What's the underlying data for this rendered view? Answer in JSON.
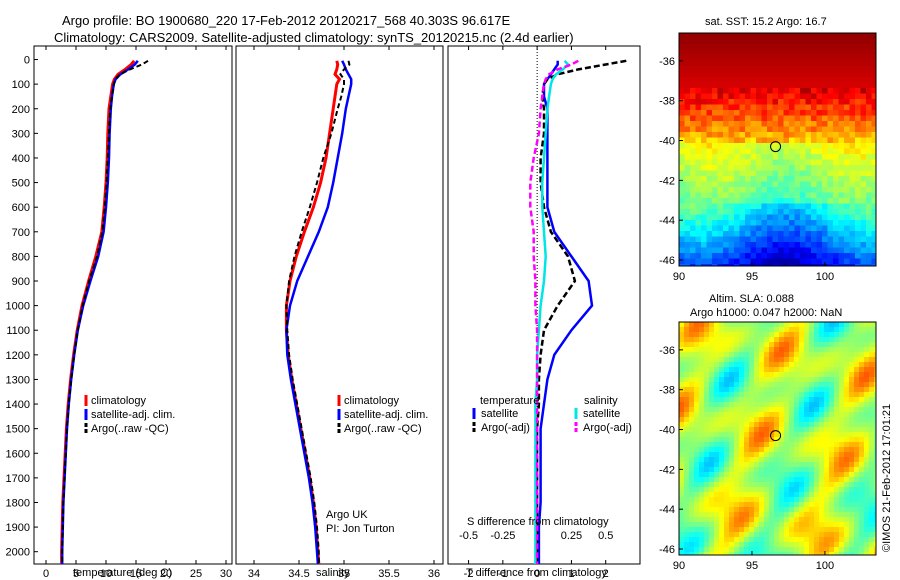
{
  "header": {
    "title_line1": "Argo profile: BO 1900680_220 17-Feb-2012 20120217_568 40.303S 96.617E",
    "title_line2": "Climatology: CARS2009. Satellite-adjusted climatology: synTS_20120215.nc (2.4d earlier)"
  },
  "colors": {
    "climatology": "#ff0000",
    "satellite": "#0000ff",
    "argo": "#000000",
    "salinity_satellite": "#00e5e5",
    "salinity_argo": "#ff00ff"
  },
  "depth_axis": {
    "ticks": [
      "0",
      "100",
      "200",
      "300",
      "400",
      "500",
      "600",
      "700",
      "800",
      "900",
      "1000",
      "1100",
      "1200",
      "1300",
      "1400",
      "1500",
      "1600",
      "1700",
      "1800",
      "1900",
      "2000"
    ]
  },
  "chart_data": [
    {
      "name": "temperature profile",
      "type": "line",
      "xlabel": "temperature (deg C)",
      "ylabel": "",
      "xlim": [
        -2,
        31
      ],
      "ylim": [
        2050,
        0
      ],
      "xticks": [
        "0",
        "5",
        "10",
        "15",
        "20",
        "25",
        "30"
      ],
      "legend": [
        "climatology",
        "satellite-adj. clim.",
        "Argo(..raw -QC)"
      ],
      "legend_position": "lower-right",
      "depth": [
        5,
        20,
        40,
        60,
        80,
        100,
        150,
        200,
        300,
        400,
        500,
        600,
        700,
        800,
        900,
        1000,
        1100,
        1200,
        1300,
        1400,
        1500,
        1600,
        1700,
        1800,
        1900,
        2000,
        2050
      ],
      "series": [
        {
          "name": "climatology",
          "values": [
            14.7,
            14.2,
            13.2,
            12.0,
            11.4,
            11.1,
            10.8,
            10.5,
            10.3,
            10.2,
            10.0,
            9.7,
            9.3,
            8.3,
            7.1,
            6.0,
            5.2,
            4.6,
            4.1,
            3.7,
            3.4,
            3.2,
            3.0,
            2.8,
            2.7,
            2.6,
            2.6
          ]
        },
        {
          "name": "satellite-adj. clim.",
          "values": [
            15.3,
            14.8,
            13.7,
            12.4,
            11.6,
            11.3,
            11.0,
            10.8,
            10.6,
            10.5,
            10.3,
            10.0,
            9.6,
            8.7,
            7.4,
            6.2,
            5.3,
            4.7,
            4.2,
            3.8,
            3.5,
            3.3,
            3.1,
            2.9,
            2.8,
            2.7,
            2.7
          ]
        },
        {
          "name": "Argo(..raw -QC)",
          "values": [
            17.0,
            16.0,
            14.0,
            12.3,
            11.6,
            11.3,
            11.0,
            10.7,
            10.5,
            10.3,
            10.1,
            9.8,
            9.4,
            8.5,
            7.2,
            6.1,
            5.3,
            4.7,
            4.2,
            3.8,
            3.5,
            3.3,
            3.1,
            2.9,
            2.8,
            2.7,
            2.7
          ]
        }
      ]
    },
    {
      "name": "salinity profile",
      "type": "line",
      "xlabel": "salinity",
      "ylabel": "",
      "xlim": [
        33.8,
        36.1
      ],
      "ylim": [
        2050,
        0
      ],
      "xticks": [
        "34",
        "34.5",
        "35",
        "35.5",
        "36"
      ],
      "legend": [
        "climatology",
        "satellite-adj. clim.",
        "Argo(..raw -QC)"
      ],
      "legend_position": "lower-right",
      "annotation_line1": "Argo UK",
      "annotation_line2": "PI: Jon Turton",
      "depth": [
        5,
        20,
        40,
        60,
        80,
        100,
        150,
        200,
        300,
        400,
        500,
        600,
        700,
        800,
        900,
        1000,
        1100,
        1200,
        1300,
        1400,
        1500,
        1600,
        1700,
        1800,
        1900,
        2000,
        2050
      ],
      "series": [
        {
          "name": "climatology",
          "values": [
            34.92,
            34.93,
            34.92,
            34.9,
            34.95,
            34.92,
            34.9,
            34.88,
            34.84,
            34.8,
            34.74,
            34.66,
            34.56,
            34.47,
            34.4,
            34.36,
            34.36,
            34.38,
            34.42,
            34.47,
            34.52,
            34.57,
            34.62,
            34.66,
            34.69,
            34.71,
            34.72
          ]
        },
        {
          "name": "satellite-adj. clim.",
          "values": [
            34.98,
            35.0,
            35.02,
            35.05,
            35.08,
            35.08,
            35.05,
            35.02,
            34.98,
            34.93,
            34.88,
            34.82,
            34.72,
            34.6,
            34.48,
            34.4,
            34.36,
            34.37,
            34.41,
            34.46,
            34.51,
            34.56,
            34.61,
            34.65,
            34.68,
            34.7,
            34.71
          ]
        },
        {
          "name": "Argo(..raw -QC)",
          "values": [
            35.05,
            35.06,
            35.0,
            34.96,
            35.0,
            35.0,
            34.97,
            34.93,
            34.86,
            34.77,
            34.7,
            34.62,
            34.53,
            34.45,
            34.39,
            34.36,
            34.37,
            34.39,
            34.43,
            34.48,
            34.53,
            34.58,
            34.63,
            34.67,
            34.7,
            34.72,
            34.72
          ]
        }
      ]
    },
    {
      "name": "difference profile",
      "type": "line",
      "xlabel": "T difference from climatology",
      "top_label": "S difference from climatology",
      "xlim": [
        -2.6,
        3.0
      ],
      "ylim": [
        2050,
        0
      ],
      "xticks": [
        "-2",
        "-1",
        "0",
        "1",
        "2"
      ],
      "sticks": [
        "-0.5",
        "-0.25",
        "0",
        "0.25",
        "0.5"
      ],
      "legend_temperature_heading": "temperature",
      "legend_salinity_heading": "salinity",
      "legend_temperature": [
        "satellite",
        "Argo(-adj)"
      ],
      "legend_salinity": [
        "satellite",
        "Argo(-adj)"
      ],
      "depth": [
        5,
        20,
        40,
        60,
        80,
        100,
        150,
        200,
        300,
        400,
        500,
        600,
        700,
        800,
        900,
        1000,
        1100,
        1200,
        1300,
        1400,
        1500,
        1600,
        1700,
        1800,
        1900,
        2000,
        2050
      ],
      "series": [
        {
          "name": "temperature satellite",
          "values": [
            0.6,
            0.6,
            0.5,
            0.4,
            0.3,
            0.2,
            0.2,
            0.3,
            0.3,
            0.3,
            0.3,
            0.3,
            0.5,
            1.0,
            1.5,
            1.6,
            1.0,
            0.5,
            0.3,
            0.2,
            0.1,
            0.1,
            0.1,
            0.1,
            0.05,
            0.05,
            0.05
          ]
        },
        {
          "name": "temperature Argo(-adj)",
          "values": [
            2.6,
            2.0,
            1.2,
            0.6,
            0.3,
            0.2,
            0.15,
            0.2,
            0.2,
            0.1,
            0.1,
            0.2,
            0.4,
            0.9,
            1.1,
            0.6,
            0.2,
            0.1,
            0.05,
            0.05,
            0.0,
            0.0,
            0.0,
            0.0,
            0.0,
            0.0,
            0.0
          ]
        },
        {
          "name": "salinity satellite",
          "values": [
            0.8,
            0.9,
            0.75,
            0.55,
            0.45,
            0.4,
            0.35,
            0.3,
            0.25,
            0.2,
            0.15,
            0.15,
            0.2,
            0.25,
            0.2,
            0.1,
            0.05,
            0.0,
            0.0,
            -0.05,
            -0.05,
            -0.05,
            -0.05,
            -0.05,
            -0.05,
            -0.05,
            -0.05
          ]
        },
        {
          "name": "salinity Argo(-adj)",
          "values": [
            1.2,
            1.0,
            0.6,
            0.35,
            0.25,
            0.2,
            0.15,
            0.1,
            0.05,
            -0.1,
            -0.2,
            -0.2,
            -0.1,
            -0.1,
            -0.05,
            -0.05,
            0.0,
            0.0,
            0.0,
            0.0,
            0.0,
            0.0,
            0.0,
            0.0,
            0.0,
            0.0,
            0.0
          ]
        }
      ]
    },
    {
      "name": "sat SST map",
      "type": "heatmap",
      "title": "sat. SST: 15.2  Argo: 16.7",
      "xlim": [
        90,
        103.5
      ],
      "ylim": [
        -46.3,
        -34.6
      ],
      "xticks": [
        "90",
        "95",
        "100"
      ],
      "yticks": [
        "-36",
        "-38",
        "-40",
        "-42",
        "-44",
        "-46"
      ],
      "argo_position": {
        "lon": 96.617,
        "lat": -40.303
      }
    },
    {
      "name": "sea level anomaly map",
      "type": "heatmap",
      "title_line1": "Altim. SLA: 0.088",
      "title_line2": "Argo h1000: 0.047 h2000: NaN",
      "xlim": [
        90,
        103.5
      ],
      "ylim": [
        -46.3,
        -34.6
      ],
      "xticks": [
        "90",
        "95",
        "100"
      ],
      "yticks": [
        "-36",
        "-38",
        "-40",
        "-42",
        "-44",
        "-46"
      ],
      "argo_position": {
        "lon": 96.617,
        "lat": -40.303
      }
    }
  ],
  "footer": {
    "credit": "©IMOS 21-Feb-2012 17:01:21"
  }
}
